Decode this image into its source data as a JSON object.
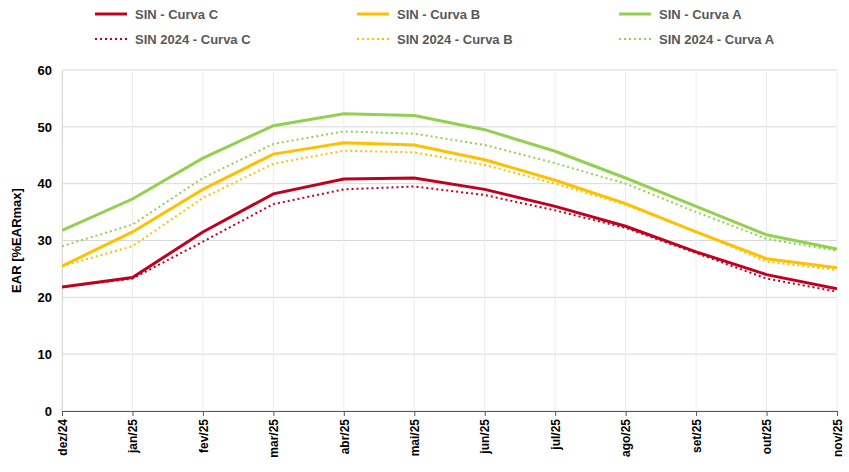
{
  "chart_data": {
    "type": "line",
    "y_label": "EAR [%EARmax]",
    "categories": [
      "dez/24",
      "jan/25",
      "fev/25",
      "mar/25",
      "abr/25",
      "mai/25",
      "jun/25",
      "jul/25",
      "ago/25",
      "set/25",
      "out/25",
      "nov/25"
    ],
    "ylim": [
      0,
      60
    ],
    "yticks": [
      0,
      10,
      20,
      30,
      40,
      50,
      60
    ],
    "grid": true,
    "legend": "top",
    "series": [
      {
        "name": "SIN - Curva C",
        "color": "#c00020",
        "line_style": "solid",
        "values": [
          21.8,
          23.5,
          31.5,
          38.2,
          40.8,
          41.0,
          39.0,
          36.0,
          32.5,
          28.0,
          24.0,
          21.5
        ]
      },
      {
        "name": "SIN - Curva B",
        "color": "#ffc000",
        "line_style": "solid",
        "values": [
          25.5,
          31.5,
          39.0,
          45.2,
          47.2,
          46.8,
          44.2,
          40.6,
          36.5,
          31.5,
          26.8,
          25.2
        ]
      },
      {
        "name": "SIN - Curva A",
        "color": "#92d050",
        "line_style": "solid",
        "values": [
          31.8,
          37.3,
          44.5,
          50.2,
          52.3,
          52.0,
          49.5,
          45.7,
          41.0,
          36.0,
          31.0,
          28.5
        ]
      },
      {
        "name": "SIN 2024 - Curva C",
        "color": "#c00020",
        "line_style": "dotted",
        "values": [
          21.8,
          23.3,
          29.8,
          36.4,
          39.0,
          39.5,
          38.0,
          35.3,
          32.2,
          27.8,
          23.3,
          21.0
        ]
      },
      {
        "name": "SIN 2024 - Curva B",
        "color": "#ffc000",
        "line_style": "dotted",
        "values": [
          25.5,
          29.0,
          37.5,
          43.5,
          45.8,
          45.5,
          43.3,
          40.0,
          36.3,
          31.5,
          26.3,
          24.8
        ]
      },
      {
        "name": "SIN 2024 - Curva A",
        "color": "#92d050",
        "line_style": "dotted",
        "values": [
          29.0,
          32.8,
          41.0,
          47.0,
          49.2,
          48.8,
          46.8,
          43.6,
          40.0,
          35.0,
          30.3,
          28.2
        ]
      }
    ]
  }
}
